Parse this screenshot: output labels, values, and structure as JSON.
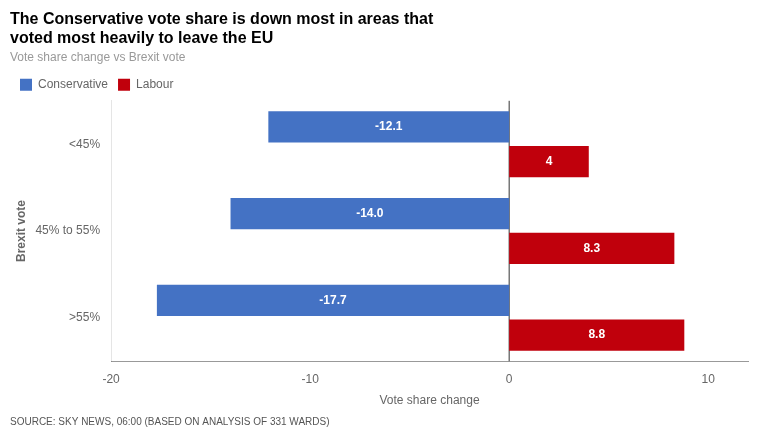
{
  "chart_data": {
    "type": "bar",
    "orientation": "horizontal",
    "title": [
      "The Conservative vote share is down most in areas that",
      "voted most heavily to leave the EU"
    ],
    "subtitle": "Vote share change vs Brexit vote",
    "categories": [
      "<45%",
      "45% to 55%",
      ">55%"
    ],
    "series": [
      {
        "name": "Conservative",
        "color": "#4472C4",
        "values": [
          -12.1,
          -14.0,
          -17.7
        ],
        "value_labels": [
          "-12.1",
          "-14.0",
          "-17.7"
        ]
      },
      {
        "name": "Labour",
        "color": "#C0000C",
        "values": [
          4.0,
          8.3,
          8.8
        ]
      }
    ],
    "xlim": [
      -20,
      12
    ],
    "xticks": [
      -20,
      -10,
      0,
      10
    ],
    "xlabel": "Vote share change",
    "ylabel": "Brexit vote",
    "source": "SOURCE: SKY NEWS, 06:00 (BASED ON ANALYSIS OF 331 WARDS)",
    "legend": "upper left",
    "grid": false,
    "data_labels": true
  }
}
